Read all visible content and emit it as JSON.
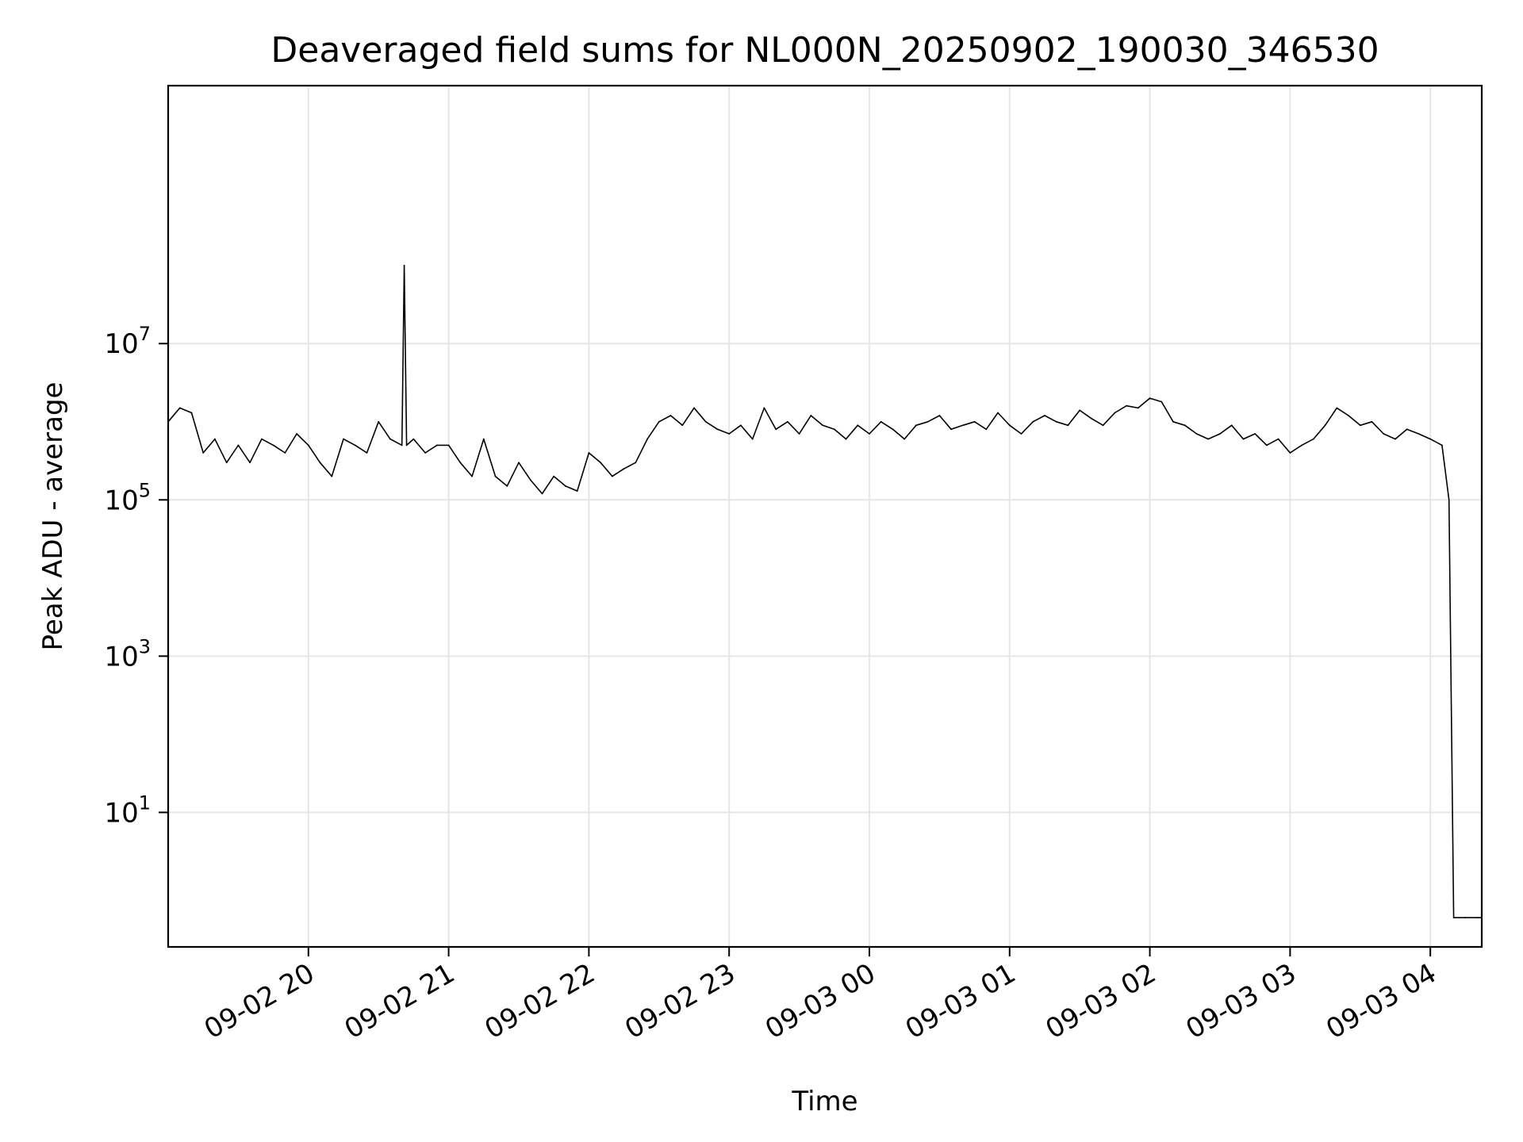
{
  "chart_data": {
    "type": "line",
    "title": "Deaveraged field sums for NL000N_20250902_190030_346530",
    "xlabel": "Time",
    "ylabel": "Peak ADU - average",
    "y_scale": "log",
    "ylim": [
      0.19,
      20000000000
    ],
    "xlim": [
      "2025-09-02 19:00",
      "2025-09-03 04:22"
    ],
    "grid": true,
    "line_color": "#000000",
    "grid_color": "#e6e6e6",
    "x_ticks": [
      {
        "value": "2025-09-02 20:00",
        "label": "09-02 20"
      },
      {
        "value": "2025-09-02 21:00",
        "label": "09-02 21"
      },
      {
        "value": "2025-09-02 22:00",
        "label": "09-02 22"
      },
      {
        "value": "2025-09-02 23:00",
        "label": "09-02 23"
      },
      {
        "value": "2025-09-03 00:00",
        "label": "09-03 00"
      },
      {
        "value": "2025-09-03 01:00",
        "label": "09-03 01"
      },
      {
        "value": "2025-09-03 02:00",
        "label": "09-03 02"
      },
      {
        "value": "2025-09-03 03:00",
        "label": "09-03 03"
      },
      {
        "value": "2025-09-03 04:00",
        "label": "09-03 04"
      }
    ],
    "y_ticks": [
      {
        "value": 10,
        "base": "10",
        "exp": "1"
      },
      {
        "value": 1000,
        "base": "10",
        "exp": "3"
      },
      {
        "value": 100000,
        "base": "10",
        "exp": "5"
      },
      {
        "value": 10000000,
        "base": "10",
        "exp": "7"
      }
    ],
    "series": [
      {
        "x": [
          "2025-09-02 19:00",
          "2025-09-02 19:05",
          "2025-09-02 19:10",
          "2025-09-02 19:15",
          "2025-09-02 19:20",
          "2025-09-02 19:25",
          "2025-09-02 19:30",
          "2025-09-02 19:35",
          "2025-09-02 19:40",
          "2025-09-02 19:45",
          "2025-09-02 19:50",
          "2025-09-02 19:55",
          "2025-09-02 20:00",
          "2025-09-02 20:05",
          "2025-09-02 20:10",
          "2025-09-02 20:15",
          "2025-09-02 20:20",
          "2025-09-02 20:25",
          "2025-09-02 20:30",
          "2025-09-02 20:35",
          "2025-09-02 20:40",
          "2025-09-02 20:41",
          "2025-09-02 20:42",
          "2025-09-02 20:45",
          "2025-09-02 20:50",
          "2025-09-02 20:55",
          "2025-09-02 21:00",
          "2025-09-02 21:05",
          "2025-09-02 21:10",
          "2025-09-02 21:15",
          "2025-09-02 21:20",
          "2025-09-02 21:25",
          "2025-09-02 21:30",
          "2025-09-02 21:35",
          "2025-09-02 21:40",
          "2025-09-02 21:45",
          "2025-09-02 21:50",
          "2025-09-02 21:55",
          "2025-09-02 22:00",
          "2025-09-02 22:05",
          "2025-09-02 22:10",
          "2025-09-02 22:15",
          "2025-09-02 22:20",
          "2025-09-02 22:25",
          "2025-09-02 22:30",
          "2025-09-02 22:35",
          "2025-09-02 22:40",
          "2025-09-02 22:45",
          "2025-09-02 22:50",
          "2025-09-02 22:55",
          "2025-09-02 23:00",
          "2025-09-02 23:05",
          "2025-09-02 23:10",
          "2025-09-02 23:15",
          "2025-09-02 23:20",
          "2025-09-02 23:25",
          "2025-09-02 23:30",
          "2025-09-02 23:35",
          "2025-09-02 23:40",
          "2025-09-02 23:45",
          "2025-09-02 23:50",
          "2025-09-02 23:55",
          "2025-09-03 00:00",
          "2025-09-03 00:05",
          "2025-09-03 00:10",
          "2025-09-03 00:15",
          "2025-09-03 00:20",
          "2025-09-03 00:25",
          "2025-09-03 00:30",
          "2025-09-03 00:35",
          "2025-09-03 00:40",
          "2025-09-03 00:45",
          "2025-09-03 00:50",
          "2025-09-03 00:55",
          "2025-09-03 01:00",
          "2025-09-03 01:05",
          "2025-09-03 01:10",
          "2025-09-03 01:15",
          "2025-09-03 01:20",
          "2025-09-03 01:25",
          "2025-09-03 01:30",
          "2025-09-03 01:35",
          "2025-09-03 01:40",
          "2025-09-03 01:45",
          "2025-09-03 01:50",
          "2025-09-03 01:55",
          "2025-09-03 02:00",
          "2025-09-03 02:05",
          "2025-09-03 02:10",
          "2025-09-03 02:15",
          "2025-09-03 02:20",
          "2025-09-03 02:25",
          "2025-09-03 02:30",
          "2025-09-03 02:35",
          "2025-09-03 02:40",
          "2025-09-03 02:45",
          "2025-09-03 02:50",
          "2025-09-03 02:55",
          "2025-09-03 03:00",
          "2025-09-03 03:05",
          "2025-09-03 03:10",
          "2025-09-03 03:15",
          "2025-09-03 03:20",
          "2025-09-03 03:25",
          "2025-09-03 03:30",
          "2025-09-03 03:35",
          "2025-09-03 03:40",
          "2025-09-03 03:45",
          "2025-09-03 03:50",
          "2025-09-03 03:55",
          "2025-09-03 04:00",
          "2025-09-03 04:05",
          "2025-09-03 04:08",
          "2025-09-03 04:10",
          "2025-09-03 04:15",
          "2025-09-03 04:20",
          "2025-09-03 04:22"
        ],
        "y": [
          1000000,
          1500000,
          1300000,
          400000,
          600000,
          300000,
          500000,
          300000,
          600000,
          500000,
          400000,
          700000,
          500000,
          300000,
          200000,
          600000,
          500000,
          400000,
          1000000,
          600000,
          500000,
          100000000,
          500000,
          600000,
          400000,
          500000,
          500000,
          300000,
          200000,
          600000,
          200000,
          150000,
          300000,
          180000,
          120000,
          200000,
          150000,
          130000,
          400000,
          300000,
          200000,
          250000,
          300000,
          600000,
          1000000,
          1200000,
          900000,
          1500000,
          1000000,
          800000,
          700000,
          900000,
          600000,
          1500000,
          800000,
          1000000,
          700000,
          1200000,
          900000,
          800000,
          600000,
          900000,
          700000,
          1000000,
          800000,
          600000,
          900000,
          1000000,
          1200000,
          800000,
          900000,
          1000000,
          800000,
          1300000,
          900000,
          700000,
          1000000,
          1200000,
          1000000,
          900000,
          1400000,
          1100000,
          900000,
          1300000,
          1600000,
          1500000,
          2000000,
          1800000,
          1000000,
          900000,
          700000,
          600000,
          700000,
          900000,
          600000,
          700000,
          500000,
          600000,
          400000,
          500000,
          600000,
          900000,
          1500000,
          1200000,
          900000,
          1000000,
          700000,
          600000,
          800000,
          700000,
          600000,
          500000,
          100000,
          0.45,
          0.45,
          0.45,
          0.45
        ]
      }
    ]
  }
}
